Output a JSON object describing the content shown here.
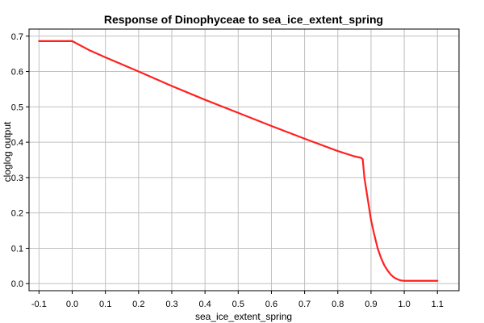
{
  "chart_data": {
    "type": "line",
    "title": "Response of Dinophyceae to sea_ice_extent_spring",
    "xlabel": "sea_ice_extent_spring",
    "ylabel": "cloglog output",
    "xlim": [
      -0.13,
      1.165
    ],
    "ylim": [
      -0.02,
      0.72
    ],
    "xticks": [
      "-0.1",
      "0.0",
      "0.1",
      "0.2",
      "0.3",
      "0.4",
      "0.5",
      "0.6",
      "0.7",
      "0.8",
      "0.9",
      "1.0",
      "1.1"
    ],
    "yticks": [
      "0.0",
      "0.1",
      "0.2",
      "0.3",
      "0.4",
      "0.5",
      "0.6",
      "0.7"
    ],
    "grid": true,
    "color": "#ff2020",
    "series": [
      {
        "x": [
          -0.1,
          -0.05,
          0.0,
          0.05,
          0.1,
          0.2,
          0.3,
          0.4,
          0.5,
          0.6,
          0.7,
          0.8,
          0.85,
          0.87,
          0.875,
          0.88,
          0.89,
          0.9,
          0.91,
          0.92,
          0.93,
          0.94,
          0.95,
          0.96,
          0.97,
          0.98,
          0.99,
          1.0,
          1.1
        ],
        "y": [
          0.686,
          0.686,
          0.686,
          0.661,
          0.64,
          0.6,
          0.559,
          0.52,
          0.483,
          0.446,
          0.41,
          0.375,
          0.36,
          0.356,
          0.352,
          0.3,
          0.24,
          0.18,
          0.138,
          0.1,
          0.073,
          0.052,
          0.037,
          0.025,
          0.017,
          0.012,
          0.009,
          0.008,
          0.008
        ]
      }
    ]
  }
}
